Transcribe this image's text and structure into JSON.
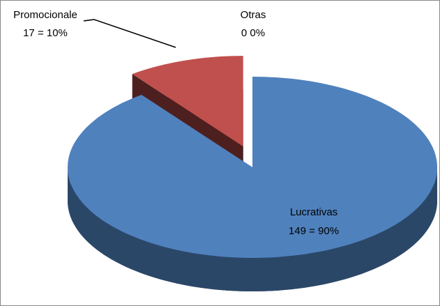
{
  "chart_data": {
    "type": "pie",
    "categories": [
      "Lucrativas",
      "Promocionale",
      "Otras"
    ],
    "values": [
      149,
      17,
      0
    ],
    "value_labels": [
      "149 = 90%",
      "17 = 10%",
      "0 0%"
    ],
    "colors": [
      "#4f81bd",
      "#c0504d",
      "#9bbb59"
    ]
  }
}
